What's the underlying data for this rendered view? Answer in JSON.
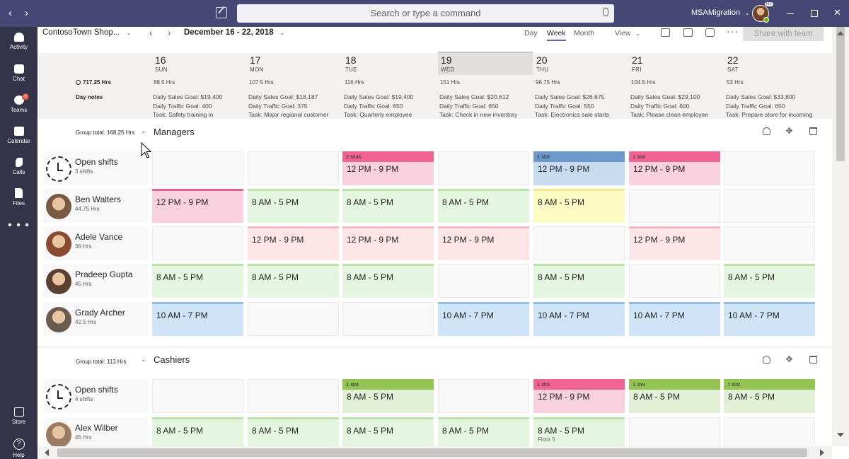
{
  "titlebar": {
    "search_placeholder": "Search or type a command",
    "tenant": "MSAMigration",
    "tenant_chevron": "⌄",
    "avatar_badge": "R0",
    "back_icon": "‹",
    "forward_icon": "›",
    "close_icon": "✕"
  },
  "rail": {
    "activity": "Activity",
    "chat": "Chat",
    "teams": "Teams",
    "teams_badge": "@",
    "calendar": "Calendar",
    "calls": "Calls",
    "files": "Files",
    "more": "• • •",
    "store": "Store",
    "help": "Help",
    "help_glyph": "?"
  },
  "toolbar": {
    "team": "ContosoTown Shop...",
    "chevron": "⌄",
    "prev": "‹",
    "next": "›",
    "date_range": "December 16 - 22, 2018",
    "day": "Day",
    "week": "Week",
    "month": "Month",
    "view": "View",
    "more": "···",
    "share": "Share with team"
  },
  "schedule": {
    "total_hours": "717.25 Hrs",
    "day_notes_label": "Day notes",
    "days": [
      {
        "num": "16",
        "name": "SUN",
        "hrs": "88.5 Hrs",
        "notes": [
          "Daily Sales Goal: $19,400",
          "Daily Traffic Goal: 400",
          "Task: Safety training in"
        ]
      },
      {
        "num": "17",
        "name": "MON",
        "hrs": "107.5 Hrs",
        "notes": [
          "Daily Sales Goal: $18,187",
          "Daily Traffic Goal: 375",
          "Task: Major regional customer"
        ]
      },
      {
        "num": "18",
        "name": "TUE",
        "hrs": "116 Hrs",
        "notes": [
          "Daily Sales Goal: $19,400",
          "Daily Traffic Goal: 650",
          "Task: Quarterly employee"
        ]
      },
      {
        "num": "19",
        "name": "WED",
        "hrs": "151 Hrs",
        "notes": [
          "Daily Sales Goal: $20,612",
          "Daily Traffic Goal: 650",
          "Task: Check in new inventory"
        ]
      },
      {
        "num": "20",
        "name": "THU",
        "hrs": "96.75 Hrs",
        "notes": [
          "Daily Sales Goal: $26,675",
          "Daily Traffic Goal: 550",
          "Task: Electronics sale starts"
        ]
      },
      {
        "num": "21",
        "name": "FRI",
        "hrs": "104.5 Hrs",
        "notes": [
          "Daily Sales Goal: $29,100",
          "Daily Traffic Goal: 600",
          "Task: Please clean employee"
        ]
      },
      {
        "num": "22",
        "name": "SAT",
        "hrs": "53 Hrs",
        "notes": [
          "Daily Sales Goal: $33,800",
          "Daily Traffic Goal: 650",
          "Task: Prepare store for incoming"
        ]
      }
    ]
  },
  "groups": [
    {
      "name": "Managers",
      "total": "Group total: 168.25 Hrs",
      "chevron": "⌄",
      "rows": [
        {
          "name": "Open shifts",
          "sub": "3 shifts",
          "avatar": "open",
          "cells": [
            null,
            null,
            {
              "color": "pink",
              "slot": "2 slots",
              "slot_color": "pink",
              "time": "12 PM - 9 PM"
            },
            null,
            {
              "color": "bluetop",
              "slot": "1 slot",
              "slot_color": "blue",
              "time": "12 PM - 9 PM"
            },
            {
              "color": "pink",
              "slot": "1 slot",
              "slot_color": "pink",
              "time": "12 PM - 9 PM"
            },
            null
          ]
        },
        {
          "name": "Ben Walters",
          "sub": "44.75 Hrs",
          "avatar": "#7a5a45",
          "cells": [
            {
              "color": "pink",
              "time": "12 PM - 9 PM"
            },
            {
              "color": "green",
              "time": "8 AM - 5 PM"
            },
            {
              "color": "green",
              "time": "8 AM - 5 PM"
            },
            {
              "color": "green",
              "time": "8 AM - 5 PM"
            },
            {
              "color": "yellow",
              "time": "8 AM - 5 PM"
            },
            null,
            null
          ]
        },
        {
          "name": "Adele Vance",
          "sub": "36 Hrs",
          "avatar": "#8a4a30",
          "cells": [
            null,
            {
              "color": "pinklt",
              "time": "12 PM - 9 PM"
            },
            {
              "color": "pinklt",
              "time": "12 PM - 9 PM"
            },
            {
              "color": "pinklt",
              "time": "12 PM - 9 PM"
            },
            null,
            {
              "color": "pinklt",
              "time": "12 PM - 9 PM"
            },
            null
          ]
        },
        {
          "name": "Pradeep Gupta",
          "sub": "45 Hrs",
          "avatar": "#5a4030",
          "cells": [
            {
              "color": "green",
              "time": "8 AM - 5 PM"
            },
            {
              "color": "green",
              "time": "8 AM - 5 PM"
            },
            {
              "color": "green",
              "time": "8 AM - 5 PM"
            },
            null,
            {
              "color": "green",
              "time": "8 AM - 5 PM"
            },
            null,
            {
              "color": "green",
              "time": "8 AM - 5 PM"
            }
          ]
        },
        {
          "name": "Grady Archer",
          "sub": "42.5 Hrs",
          "avatar": "#6b5a4e",
          "cells": [
            {
              "color": "blue",
              "time": "10 AM - 7 PM"
            },
            null,
            null,
            {
              "color": "blue",
              "time": "10 AM - 7 PM"
            },
            {
              "color": "blue",
              "time": "10 AM - 7 PM"
            },
            {
              "color": "blue",
              "time": "10 AM - 7 PM"
            },
            {
              "color": "blue",
              "time": "10 AM - 7 PM"
            }
          ]
        }
      ]
    },
    {
      "name": "Cashiers",
      "total": "Group total: 113 Hrs",
      "chevron": "⌄",
      "rows": [
        {
          "name": "Open shifts",
          "sub": "4 shifts",
          "avatar": "open",
          "cells": [
            null,
            null,
            {
              "color": "greenD",
              "slot": "1 slot",
              "slot_color": "green",
              "time": "8 AM - 5 PM"
            },
            null,
            {
              "color": "pink",
              "slot": "1 slot",
              "slot_color": "pink",
              "time": "12 PM - 9 PM"
            },
            {
              "color": "greenD",
              "slot": "1 slot",
              "slot_color": "green",
              "time": "8 AM - 5 PM"
            },
            {
              "color": "greenD",
              "slot": "1 slot",
              "slot_color": "green",
              "time": "8 AM - 5 PM"
            }
          ]
        },
        {
          "name": "Alex Wilber",
          "sub": "45 Hrs",
          "avatar": "#9a7a60",
          "cells": [
            {
              "color": "green",
              "time": "8 AM - 5 PM"
            },
            {
              "color": "green",
              "time": "8 AM - 5 PM"
            },
            {
              "color": "green",
              "time": "8 AM - 5 PM"
            },
            {
              "color": "green",
              "time": "8 AM - 5 PM"
            },
            {
              "color": "green",
              "time": "8 AM - 5 PM",
              "floor": "Floor 5"
            },
            null,
            null
          ]
        }
      ]
    }
  ],
  "colors": {
    "accent": "#6264a7",
    "titlebar": "#464775",
    "rail": "#33344a"
  }
}
